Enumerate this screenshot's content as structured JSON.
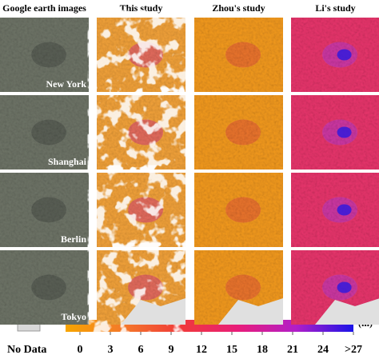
{
  "columns": [
    "Google earth images",
    "This study",
    "Zhou's study",
    "Li's study"
  ],
  "rows": [
    "New York",
    "Shanghai",
    "Berlin",
    "Tokyo"
  ],
  "legend": {
    "no_data": "No Data",
    "colorbar": {
      "unit": "(m)",
      "ticks": [
        0,
        3,
        6,
        9,
        12,
        15,
        18,
        21,
        24,
        {
          "value": 27,
          "label": ">27"
        }
      ]
    }
  }
}
